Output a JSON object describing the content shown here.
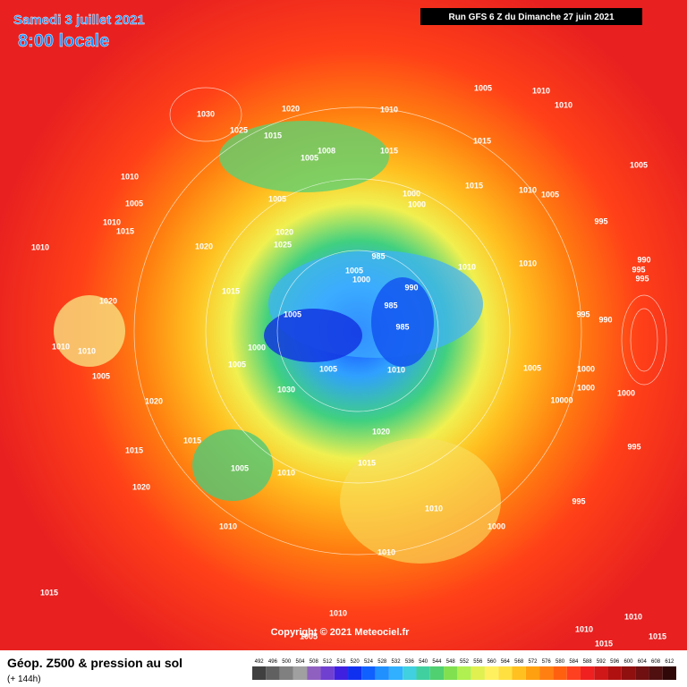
{
  "header": {
    "date": "Samedi 3 juillet 2021",
    "time": "8:00 locale",
    "run": "Run GFS 6 Z du Dimanche 27 juin 2021"
  },
  "map": {
    "pressure_labels": [
      1030,
      1025,
      1015,
      1020,
      1010,
      1005,
      1010,
      1010,
      1015,
      1008,
      1005,
      1015,
      1010,
      1005,
      1005,
      1000,
      1000,
      1015,
      1010,
      1005,
      1005,
      995,
      1010,
      1015,
      1010,
      1020,
      1020,
      1025,
      985,
      1005,
      1000,
      990,
      1010,
      1010,
      990,
      995,
      995,
      1015,
      1020,
      1005,
      985,
      985,
      995,
      990,
      1010,
      1010,
      1000,
      1005,
      1005,
      1010,
      1005,
      1000,
      1005,
      1030,
      1000,
      1000,
      10000,
      1020,
      1020,
      1015,
      1005,
      1010,
      1015,
      1015,
      995,
      1020,
      1010,
      995,
      1000,
      1010,
      1010,
      1015,
      1010,
      1010,
      1010,
      1015,
      1015,
      1005
    ]
  },
  "footer": {
    "title": "Géop. Z500 & pression au sol",
    "lead": "(+ 144h)",
    "copyright": "Copyright © 2021 Meteociel.fr",
    "scale": [
      492,
      496,
      500,
      504,
      508,
      512,
      516,
      520,
      524,
      528,
      532,
      536,
      540,
      544,
      548,
      552,
      556,
      560,
      564,
      568,
      572,
      576,
      580,
      584,
      588,
      592,
      596,
      600,
      604,
      608,
      612
    ]
  }
}
